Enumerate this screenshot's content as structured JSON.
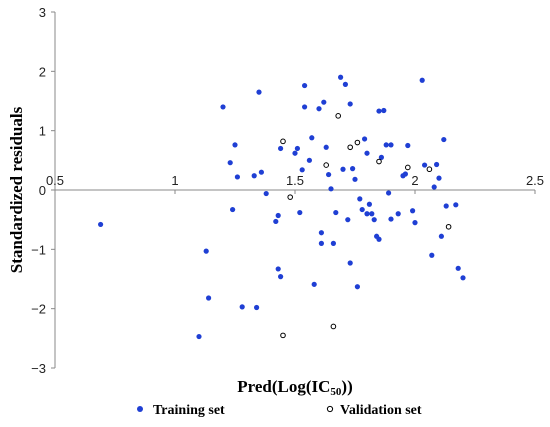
{
  "chart_data": {
    "type": "scatter",
    "xlabel": "Pred(Log(IC50))",
    "xlabel_main": "Pred(Log(IC",
    "xlabel_sub": "50",
    "xlabel_close": "))",
    "ylabel": "Standardized residuals",
    "xlim": [
      0.5,
      2.5
    ],
    "ylim": [
      -3,
      3
    ],
    "x_ticks": [
      "0.5",
      "1",
      "1.5",
      "2",
      "2.5"
    ],
    "y_ticks": [
      "3",
      "2",
      "1",
      "0",
      "−1",
      "−2",
      "−3"
    ],
    "x_tick_values": [
      0.5,
      1,
      1.5,
      2,
      2.5
    ],
    "y_tick_values": [
      3,
      2,
      1,
      0,
      -1,
      -2,
      -3
    ],
    "grid": false,
    "legend_position": "bottom",
    "colors": {
      "training": "#1f3fd4",
      "validation": "#000000",
      "axis": "#888888"
    },
    "series": [
      {
        "name": "Training set",
        "marker": "filled-circle",
        "points": [
          [
            0.69,
            -0.58
          ],
          [
            1.1,
            -2.47
          ],
          [
            1.13,
            -1.03
          ],
          [
            1.14,
            -1.82
          ],
          [
            1.2,
            1.4
          ],
          [
            1.23,
            0.46
          ],
          [
            1.25,
            0.76
          ],
          [
            1.24,
            -0.33
          ],
          [
            1.26,
            0.22
          ],
          [
            1.28,
            -1.97
          ],
          [
            1.33,
            0.24
          ],
          [
            1.34,
            -1.98
          ],
          [
            1.35,
            1.65
          ],
          [
            1.36,
            0.3
          ],
          [
            1.38,
            -0.06
          ],
          [
            1.42,
            -0.53
          ],
          [
            1.43,
            -0.43
          ],
          [
            1.44,
            0.7
          ],
          [
            1.43,
            -1.33
          ],
          [
            1.44,
            -1.46
          ],
          [
            1.5,
            0.62
          ],
          [
            1.51,
            0.7
          ],
          [
            1.52,
            -0.38
          ],
          [
            1.53,
            0.34
          ],
          [
            1.54,
            1.4
          ],
          [
            1.54,
            1.76
          ],
          [
            1.56,
            0.5
          ],
          [
            1.57,
            0.88
          ],
          [
            1.58,
            -1.59
          ],
          [
            1.6,
            1.37
          ],
          [
            1.61,
            -0.72
          ],
          [
            1.61,
            -0.9
          ],
          [
            1.62,
            1.48
          ],
          [
            1.63,
            0.72
          ],
          [
            1.64,
            0.26
          ],
          [
            1.65,
            0.02
          ],
          [
            1.66,
            -0.9
          ],
          [
            1.69,
            1.9
          ],
          [
            1.7,
            0.35
          ],
          [
            1.71,
            1.78
          ],
          [
            1.72,
            -0.5
          ],
          [
            1.73,
            1.45
          ],
          [
            1.73,
            -1.23
          ],
          [
            1.74,
            0.36
          ],
          [
            1.75,
            0.18
          ],
          [
            1.76,
            -1.63
          ],
          [
            1.77,
            -0.15
          ],
          [
            1.78,
            -0.33
          ],
          [
            1.79,
            0.86
          ],
          [
            1.8,
            0.62
          ],
          [
            1.8,
            -0.4
          ],
          [
            1.81,
            -0.24
          ],
          [
            1.82,
            -0.4
          ],
          [
            1.83,
            -0.5
          ],
          [
            1.84,
            -0.78
          ],
          [
            1.85,
            -0.83
          ],
          [
            1.85,
            1.33
          ],
          [
            1.86,
            0.55
          ],
          [
            1.87,
            1.34
          ],
          [
            1.88,
            0.76
          ],
          [
            1.89,
            -0.05
          ],
          [
            1.9,
            0.76
          ],
          [
            1.9,
            -0.49
          ],
          [
            1.93,
            -0.4
          ],
          [
            1.95,
            0.24
          ],
          [
            1.96,
            0.27
          ],
          [
            1.97,
            0.75
          ],
          [
            1.99,
            -0.35
          ],
          [
            2.0,
            -0.55
          ],
          [
            2.03,
            1.85
          ],
          [
            2.04,
            0.42
          ],
          [
            2.07,
            -1.1
          ],
          [
            2.08,
            0.05
          ],
          [
            2.09,
            0.43
          ],
          [
            2.1,
            0.2
          ],
          [
            2.11,
            -0.78
          ],
          [
            2.12,
            0.85
          ],
          [
            2.13,
            -0.27
          ],
          [
            2.17,
            -0.25
          ],
          [
            2.18,
            -1.32
          ],
          [
            2.2,
            -1.48
          ],
          [
            1.67,
            -0.38
          ]
        ]
      },
      {
        "name": "Validation set",
        "marker": "hollow-circle",
        "points": [
          [
            1.45,
            0.82
          ],
          [
            1.45,
            -2.45
          ],
          [
            1.48,
            -0.12
          ],
          [
            1.63,
            0.42
          ],
          [
            1.66,
            -2.3
          ],
          [
            1.68,
            1.25
          ],
          [
            1.73,
            0.72
          ],
          [
            1.76,
            0.8
          ],
          [
            1.85,
            0.48
          ],
          [
            1.97,
            0.38
          ],
          [
            2.06,
            0.35
          ],
          [
            2.14,
            -0.62
          ]
        ]
      }
    ]
  }
}
